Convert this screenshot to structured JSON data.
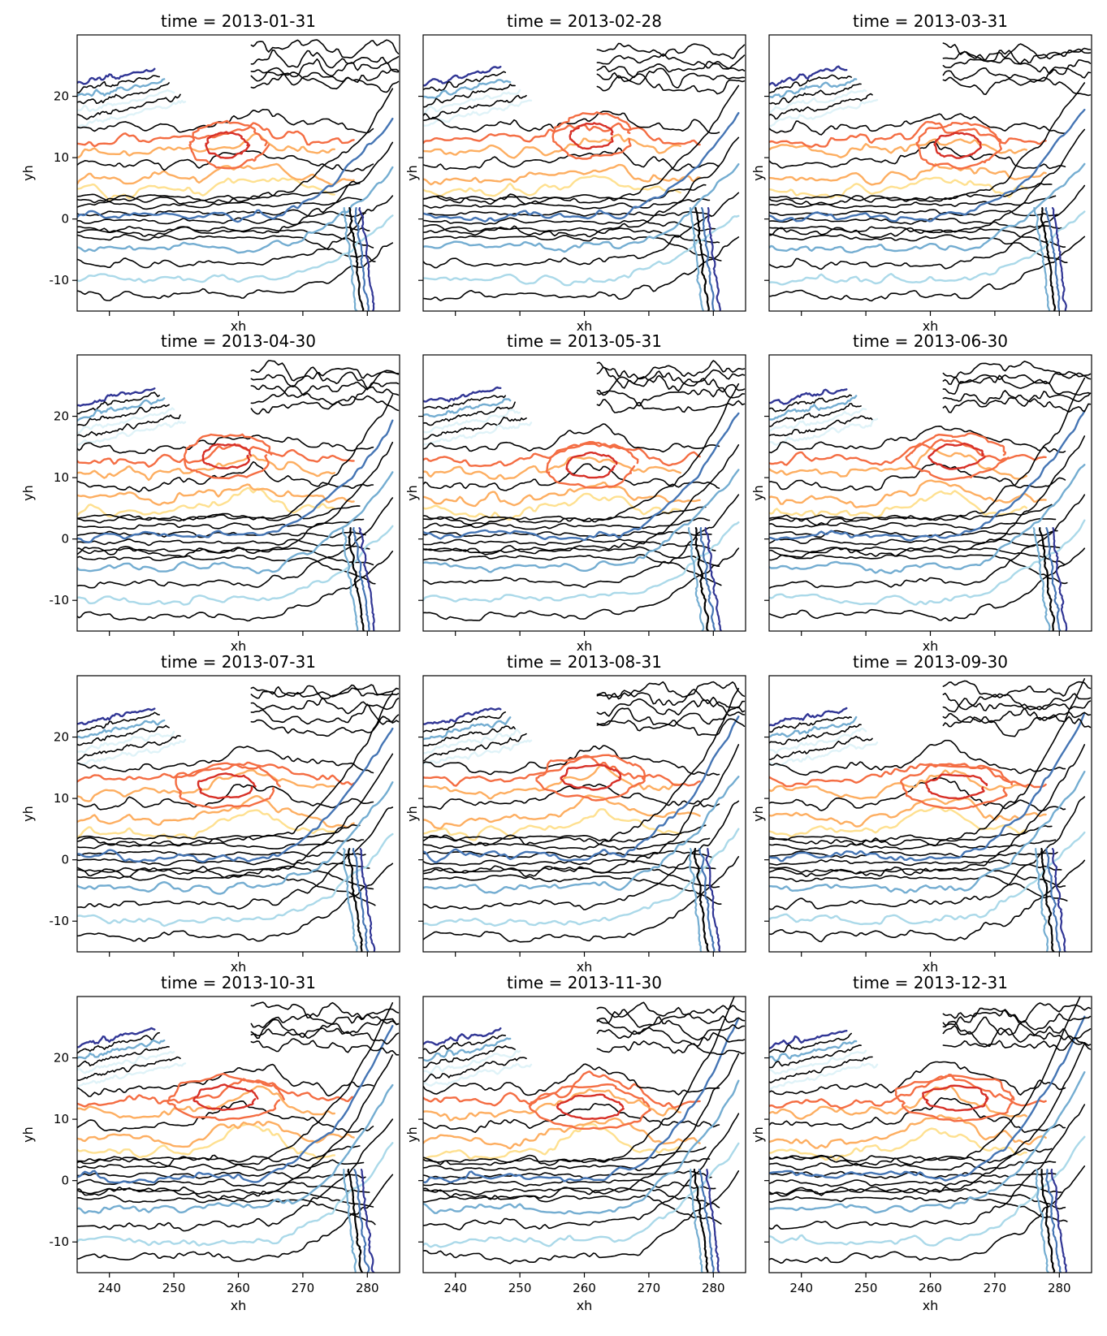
{
  "chart_data": {
    "type": "contour",
    "layout": {
      "rows": 4,
      "cols": 3
    },
    "xlabel": "xh",
    "ylabel": "yh",
    "xlim": [
      235,
      285
    ],
    "ylim": [
      -15,
      30
    ],
    "xticks": [
      240,
      250,
      260,
      270,
      280
    ],
    "yticks": [
      -10,
      0,
      10,
      20
    ],
    "colormap": [
      "#313695",
      "#4575b4",
      "#74add1",
      "#abd9e9",
      "#e0f3f8",
      "#fee090",
      "#fdae61",
      "#f46d43",
      "#d73027"
    ],
    "overlay_color": "#000000",
    "panels": [
      {
        "title": "time = 2013-01-31"
      },
      {
        "title": "time = 2013-02-28"
      },
      {
        "title": "time = 2013-03-31"
      },
      {
        "title": "time = 2013-04-30"
      },
      {
        "title": "time = 2013-05-31"
      },
      {
        "title": "time = 2013-06-30"
      },
      {
        "title": "time = 2013-07-31"
      },
      {
        "title": "time = 2013-08-31"
      },
      {
        "title": "time = 2013-09-30"
      },
      {
        "title": "time = 2013-10-31"
      },
      {
        "title": "time = 2013-11-30"
      },
      {
        "title": "time = 2013-12-31"
      }
    ]
  }
}
